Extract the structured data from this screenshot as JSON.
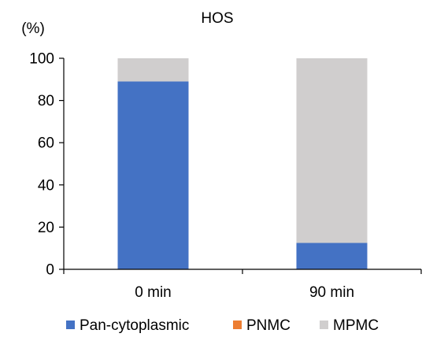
{
  "chart_data": {
    "type": "bar",
    "stacked": true,
    "title": "HOS",
    "y_unit_label": "(%)",
    "xlabel": "",
    "ylabel": "",
    "categories": [
      "0 min",
      "90 min"
    ],
    "series": [
      {
        "name": "Pan-cytoplasmic",
        "color": "#4472C4",
        "values": [
          89,
          12.5
        ]
      },
      {
        "name": "PNMC",
        "color": "#ED7D31",
        "values": [
          0,
          0
        ]
      },
      {
        "name": "MPMC",
        "color": "#D0CECE",
        "values": [
          11,
          87.5
        ]
      }
    ],
    "ylim": [
      0,
      100
    ],
    "yticks": [
      "0",
      "20",
      "40",
      "60",
      "80",
      "100"
    ],
    "grid": false,
    "legend_position": "bottom"
  }
}
